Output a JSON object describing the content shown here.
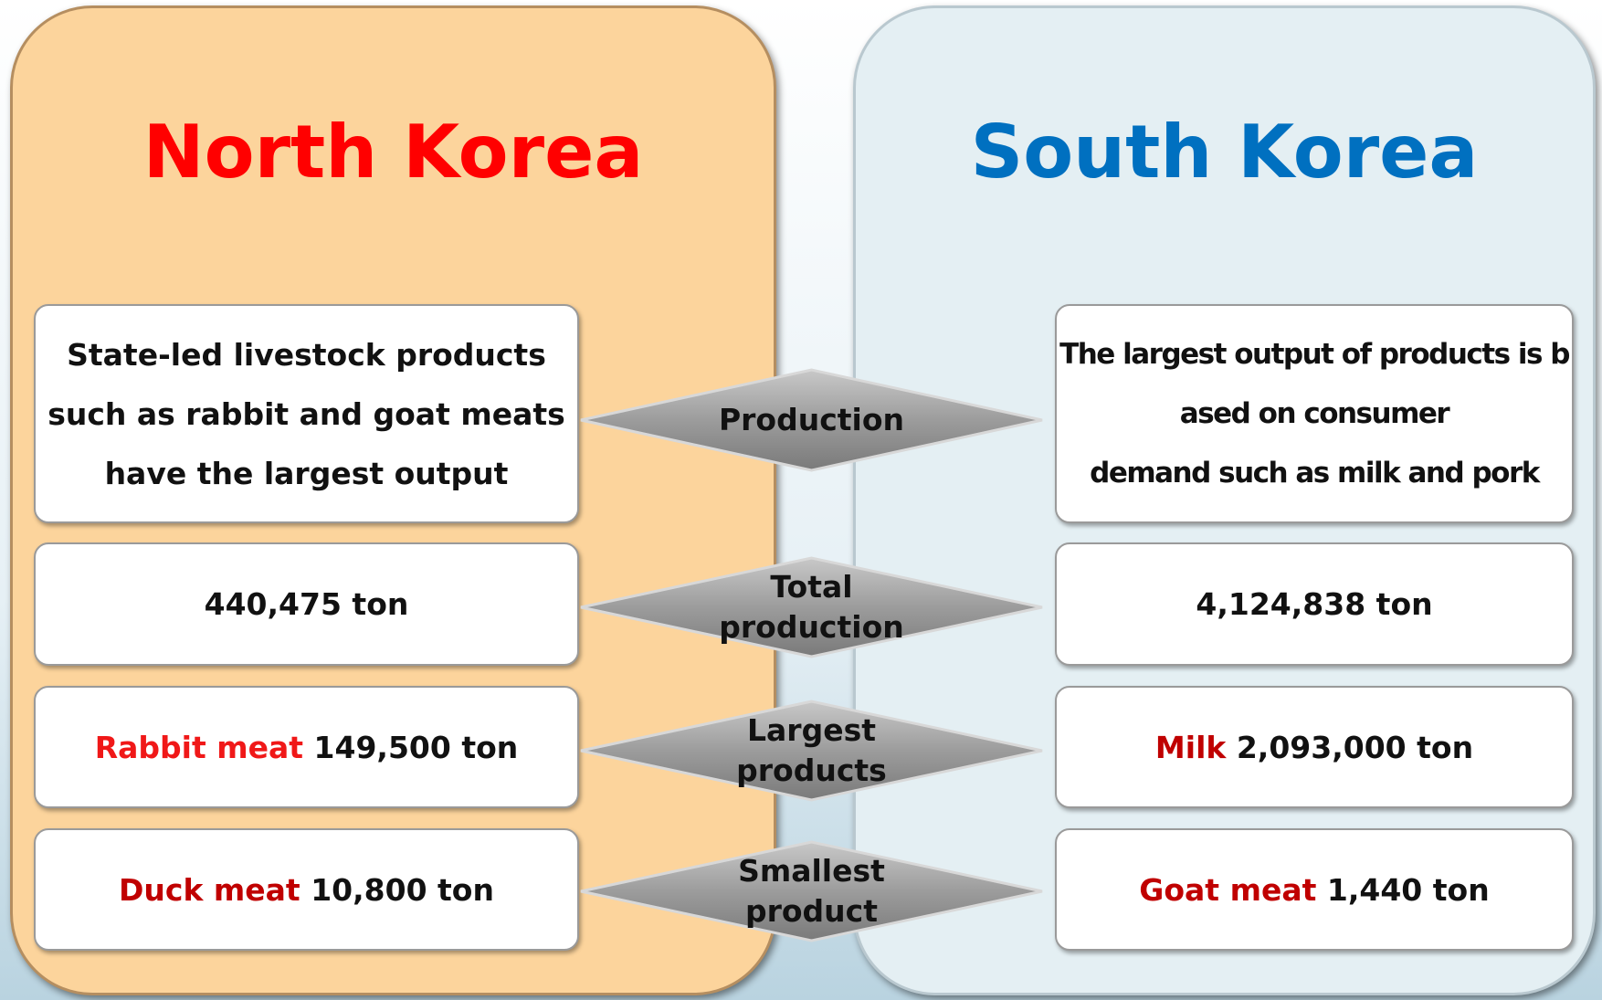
{
  "north": {
    "title": "North Korea",
    "production": [
      "State-led livestock products",
      "such as rabbit and goat meats",
      "have the largest output"
    ],
    "total": "440,475 ton",
    "largest": {
      "name": "Rabbit meat",
      "amount": "149,500 ton"
    },
    "smallest": {
      "name": "Duck meat",
      "amount": "10,800 ton"
    }
  },
  "south": {
    "title": "South Korea",
    "production": [
      "The largest output of products is b",
      "ased on consumer",
      "demand such as milk and pork"
    ],
    "total": "4,124,838 ton",
    "largest": {
      "name": "Milk",
      "amount": "2,093,000 ton"
    },
    "smallest": {
      "name": "Goat meat",
      "amount": "1,440 ton"
    }
  },
  "labels": {
    "production": [
      "Production"
    ],
    "total": [
      "Total",
      "production"
    ],
    "largest": [
      "Largest",
      "products"
    ],
    "smallest": [
      "Smallest",
      "product"
    ]
  }
}
